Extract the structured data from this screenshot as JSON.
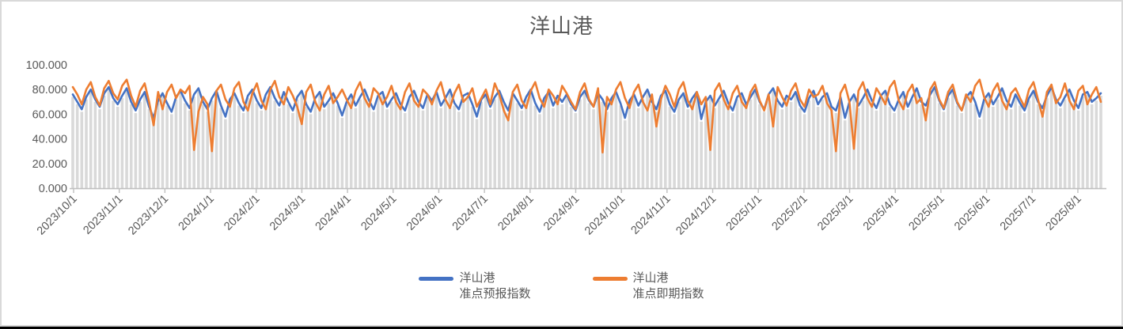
{
  "title": "洋山港",
  "colors": {
    "series_forecast": "#4472C4",
    "series_spot": "#ED7D31",
    "background_bars": "#D9D9D9",
    "axis_line": "#BFBFBF",
    "text": "#595959",
    "frame_border": "#D9D9D9"
  },
  "legend": [
    {
      "line1": "洋山港",
      "line2": "准点预报指数",
      "color": "#4472C4"
    },
    {
      "line1": "洋山港",
      "line2": "准点即期指数",
      "color": "#ED7D31"
    }
  ],
  "chart_data": {
    "type": "line",
    "title": "洋山港",
    "xlabel": "",
    "ylabel": "",
    "ylim": [
      0,
      100
    ],
    "grid": false,
    "legend_position": "bottom",
    "background_bars": true,
    "background_bar_offset": 2,
    "y_ticks": [
      {
        "v": 0,
        "label": "0.000"
      },
      {
        "v": 20,
        "label": "20.000"
      },
      {
        "v": 40,
        "label": "40.000"
      },
      {
        "v": 60,
        "label": "60.000"
      },
      {
        "v": 80,
        "label": "80.000"
      },
      {
        "v": 100,
        "label": "100.000"
      }
    ],
    "x_tick_labels": [
      "2023/10/1",
      "2023/11/1",
      "2023/12/1",
      "2024/1/1",
      "2024/2/1",
      "2024/3/1",
      "2024/4/1",
      "2024/5/1",
      "2024/6/1",
      "2024/7/1",
      "2024/8/1",
      "2024/9/1",
      "2024/10/1",
      "2024/11/1",
      "2024/12/1",
      "2025/1/1",
      "2025/2/1",
      "2025/3/1",
      "2025/4/1",
      "2025/5/1",
      "2025/6/1",
      "2025/7/1",
      "2025/8/1"
    ],
    "series": [
      {
        "name": "洋山港准点预报指数",
        "color": "#4472C4",
        "values": [
          76,
          70,
          64,
          74,
          80,
          72,
          66,
          77,
          82,
          73,
          68,
          75,
          81,
          70,
          63,
          72,
          78,
          66,
          57,
          71,
          77,
          69,
          62,
          74,
          79,
          71,
          65,
          76,
          81,
          70,
          64,
          73,
          79,
          67,
          58,
          72,
          77,
          69,
          63,
          75,
          80,
          71,
          65,
          76,
          82,
          73,
          67,
          78,
          70,
          63,
          74,
          79,
          68,
          62,
          73,
          78,
          66,
          71,
          77,
          69,
          59,
          70,
          76,
          67,
          74,
          80,
          71,
          64,
          75,
          78,
          66,
          72,
          77,
          68,
          63,
          74,
          79,
          70,
          65,
          76,
          71,
          78,
          67,
          73,
          80,
          69,
          64,
          75,
          77,
          68,
          58,
          72,
          76,
          66,
          74,
          79,
          70,
          63,
          77,
          71,
          65,
          74,
          80,
          69,
          62,
          73,
          78,
          67,
          75,
          70,
          76,
          68,
          63,
          74,
          79,
          71,
          66,
          77,
          72,
          64,
          73,
          78,
          69,
          57,
          71,
          76,
          67,
          74,
          80,
          70,
          64,
          75,
          79,
          68,
          62,
          72,
          77,
          66,
          73,
          78,
          56,
          70,
          75,
          67,
          73,
          79,
          69,
          63,
          74,
          77,
          68,
          74,
          80,
          70,
          64,
          76,
          81,
          71,
          66,
          75,
          72,
          78,
          67,
          62,
          73,
          79,
          68,
          74,
          77,
          66,
          63,
          74,
          57,
          70,
          76,
          67,
          73,
          80,
          71,
          65,
          75,
          79,
          68,
          63,
          72,
          78,
          66,
          74,
          81,
          70,
          67,
          76,
          82,
          71,
          64,
          75,
          80,
          69,
          63,
          74,
          78,
          70,
          58,
          72,
          77,
          68,
          74,
          81,
          71,
          66,
          76,
          69,
          63,
          73,
          79,
          70,
          65,
          75,
          82,
          72,
          67,
          74,
          80,
          71,
          65,
          76,
          78,
          70,
          73,
          77
        ]
      },
      {
        "name": "洋山港准点即期指数",
        "color": "#ED7D31",
        "values": [
          82,
          76,
          68,
          80,
          86,
          74,
          67,
          81,
          87,
          77,
          72,
          83,
          88,
          75,
          66,
          79,
          85,
          70,
          51,
          78,
          64,
          78,
          84,
          73,
          80,
          77,
          83,
          31,
          62,
          74,
          68,
          30,
          79,
          84,
          72,
          66,
          81,
          86,
          70,
          63,
          77,
          85,
          71,
          64,
          80,
          87,
          74,
          68,
          82,
          75,
          66,
          52,
          78,
          84,
          70,
          63,
          76,
          83,
          69,
          74,
          80,
          72,
          65,
          79,
          86,
          73,
          66,
          81,
          77,
          68,
          74,
          83,
          70,
          64,
          78,
          85,
          71,
          66,
          80,
          76,
          68,
          79,
          86,
          72,
          65,
          77,
          84,
          70,
          74,
          81,
          66,
          73,
          80,
          68,
          85,
          76,
          63,
          55,
          78,
          84,
          71,
          65,
          79,
          86,
          73,
          66,
          80,
          75,
          68,
          83,
          77,
          70,
          64,
          78,
          85,
          72,
          66,
          81,
          29,
          74,
          68,
          80,
          86,
          73,
          65,
          78,
          84,
          70,
          63,
          76,
          50,
          72,
          83,
          76,
          66,
          80,
          86,
          71,
          64,
          78,
          68,
          74,
          31,
          79,
          85,
          72,
          64,
          77,
          83,
          70,
          65,
          78,
          84,
          71,
          63,
          76,
          50,
          82,
          74,
          67,
          79,
          85,
          72,
          66,
          80,
          74,
          76,
          83,
          69,
          63,
          30,
          77,
          84,
          70,
          32,
          79,
          86,
          73,
          66,
          81,
          75,
          68,
          82,
          87,
          71,
          64,
          78,
          84,
          69,
          73,
          55,
          80,
          86,
          72,
          65,
          78,
          84,
          70,
          63,
          76,
          70,
          83,
          88,
          74,
          66,
          79,
          85,
          71,
          64,
          77,
          81,
          73,
          66,
          80,
          86,
          72,
          58,
          78,
          84,
          69,
          74,
          85,
          71,
          64,
          79,
          83,
          68,
          76,
          82,
          70
        ]
      }
    ]
  }
}
